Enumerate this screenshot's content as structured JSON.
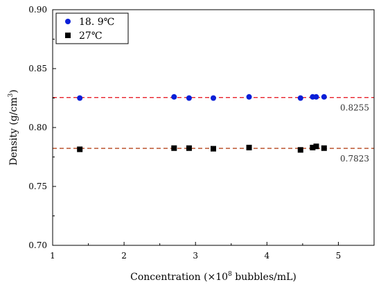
{
  "chart_data": {
    "type": "scatter",
    "xlabel": "Concentration (×10",
    "xlabel_sup": "8",
    "xlabel_tail": " bubbles/mL)",
    "ylabel": "Density (g/cm",
    "ylabel_sup": "3",
    "ylabel_tail": ")",
    "xlim": [
      1,
      5.5
    ],
    "ylim": [
      0.7,
      0.9
    ],
    "x_ticks": [
      1,
      2,
      3,
      4,
      5
    ],
    "x_tick_labels": [
      "1",
      "2",
      "3",
      "4",
      "5"
    ],
    "y_ticks": [
      0.7,
      0.75,
      0.8,
      0.85,
      0.9
    ],
    "y_tick_labels": [
      "0.70",
      "0.75",
      "0.80",
      "0.85",
      "0.90"
    ],
    "grid": false,
    "legend_position": "top-left",
    "series": [
      {
        "name": "18. 9℃",
        "marker": "circle",
        "color": "#0a1fd8",
        "x": [
          1.38,
          2.7,
          2.91,
          3.25,
          3.75,
          4.47,
          4.64,
          4.69,
          4.8
        ],
        "y": [
          0.825,
          0.826,
          0.825,
          0.825,
          0.826,
          0.825,
          0.826,
          0.826,
          0.826
        ]
      },
      {
        "name": "27℃",
        "marker": "square",
        "color": "#000000",
        "x": [
          1.38,
          2.7,
          2.91,
          3.25,
          3.75,
          4.47,
          4.64,
          4.69,
          4.8
        ],
        "y": [
          0.7815,
          0.7825,
          0.7825,
          0.782,
          0.783,
          0.781,
          0.783,
          0.784,
          0.7825
        ]
      }
    ],
    "reference_lines": [
      {
        "y": 0.8255,
        "label": "0.8255",
        "color": "#e8202a"
      },
      {
        "y": 0.7823,
        "label": "0.7823",
        "color": "#b5451b"
      }
    ]
  }
}
